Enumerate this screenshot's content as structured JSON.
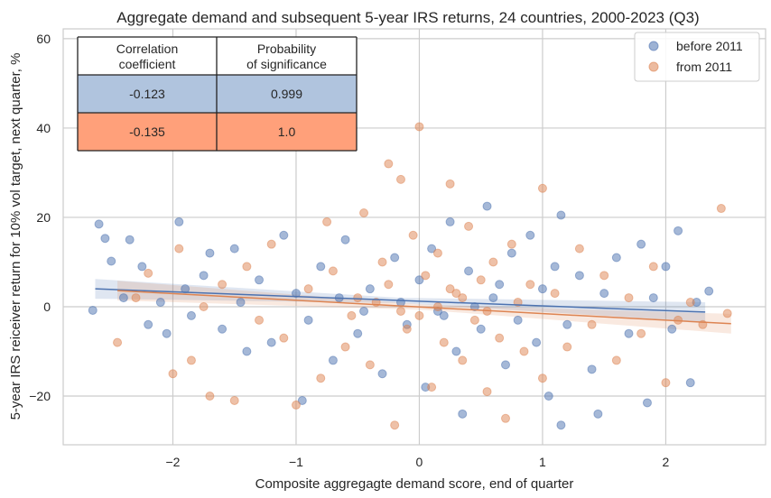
{
  "chart_data": {
    "type": "scatter",
    "title": "Aggregate demand and subsequent 5-year IRS returns, 24 countries, 2000-2023 (Q3)",
    "xlabel": "Composite aggregagte demand score, end of quarter",
    "ylabel": "5-year IRS reiceiver return for 10% vol target, next quarter, %",
    "xlim": [
      -2.89,
      2.81
    ],
    "ylim": [
      -30.9,
      62.2
    ],
    "xticks": [
      -2,
      -1,
      0,
      1,
      2
    ],
    "yticks": [
      -20,
      0,
      20,
      40,
      60
    ],
    "grid": true,
    "legend_position": "top-right",
    "series": [
      {
        "name": "before 2011",
        "color": "#4c72b0",
        "regression": {
          "x": [
            -2.63,
            2.32
          ],
          "y": [
            4.0,
            -1.2
          ]
        },
        "points": [
          [
            -2.65,
            -0.8
          ],
          [
            -2.6,
            18.5
          ],
          [
            -2.55,
            15.3
          ],
          [
            -2.5,
            10.2
          ],
          [
            -2.4,
            2
          ],
          [
            -2.35,
            15
          ],
          [
            -2.25,
            9
          ],
          [
            -2.2,
            -4
          ],
          [
            -2.1,
            1
          ],
          [
            -2.05,
            -6
          ],
          [
            -1.95,
            19
          ],
          [
            -1.9,
            4
          ],
          [
            -1.85,
            -2
          ],
          [
            -1.75,
            7
          ],
          [
            -1.7,
            12
          ],
          [
            -1.6,
            -5
          ],
          [
            -1.5,
            13
          ],
          [
            -1.45,
            1
          ],
          [
            -1.4,
            -10
          ],
          [
            -1.3,
            6
          ],
          [
            -1.2,
            -8
          ],
          [
            -1.1,
            16
          ],
          [
            -1.0,
            3
          ],
          [
            -0.95,
            -21
          ],
          [
            -0.9,
            -3
          ],
          [
            -0.8,
            9
          ],
          [
            -0.7,
            -12
          ],
          [
            -0.6,
            15
          ],
          [
            -0.5,
            -6
          ],
          [
            -0.4,
            4
          ],
          [
            -0.3,
            -15
          ],
          [
            -0.2,
            11
          ],
          [
            -0.1,
            -4
          ],
          [
            0.0,
            6
          ],
          [
            0.05,
            -18
          ],
          [
            0.1,
            13
          ],
          [
            0.2,
            -2
          ],
          [
            0.25,
            19
          ],
          [
            0.3,
            -10
          ],
          [
            0.35,
            -24
          ],
          [
            0.4,
            8
          ],
          [
            0.5,
            -5
          ],
          [
            0.55,
            22.5
          ],
          [
            0.6,
            2
          ],
          [
            0.7,
            -13
          ],
          [
            0.75,
            12
          ],
          [
            0.8,
            -3
          ],
          [
            0.9,
            16
          ],
          [
            0.95,
            -8
          ],
          [
            1.0,
            4
          ],
          [
            1.05,
            -20
          ],
          [
            1.1,
            9
          ],
          [
            1.15,
            20.5
          ],
          [
            1.15,
            -26.5
          ],
          [
            1.2,
            -4
          ],
          [
            1.3,
            7
          ],
          [
            1.4,
            -14
          ],
          [
            1.45,
            -24
          ],
          [
            1.5,
            3
          ],
          [
            1.6,
            11
          ],
          [
            1.7,
            -6
          ],
          [
            1.8,
            14
          ],
          [
            1.85,
            -21.5
          ],
          [
            1.9,
            2
          ],
          [
            2.0,
            9
          ],
          [
            2.05,
            -5
          ],
          [
            2.1,
            17
          ],
          [
            2.2,
            -17
          ],
          [
            2.25,
            1
          ],
          [
            2.35,
            3.5
          ],
          [
            -0.15,
            1
          ],
          [
            0.15,
            -1
          ],
          [
            0.45,
            0
          ],
          [
            -0.45,
            -1
          ],
          [
            0.65,
            5
          ],
          [
            -0.65,
            2
          ]
        ]
      },
      {
        "name": "from 2011",
        "color": "#dd8452",
        "regression": {
          "x": [
            -2.45,
            2.53
          ],
          "y": [
            3.6,
            -3.8
          ]
        },
        "points": [
          [
            -2.45,
            -8
          ],
          [
            -2.3,
            2
          ],
          [
            -2.2,
            7.5
          ],
          [
            -2.0,
            -15
          ],
          [
            -1.95,
            13
          ],
          [
            -1.85,
            -12
          ],
          [
            -1.75,
            0
          ],
          [
            -1.7,
            -20
          ],
          [
            -1.6,
            5
          ],
          [
            -1.5,
            -21
          ],
          [
            -1.4,
            9
          ],
          [
            -1.3,
            -3
          ],
          [
            -1.2,
            14
          ],
          [
            -1.1,
            -7
          ],
          [
            -1.0,
            -22
          ],
          [
            -0.9,
            4
          ],
          [
            -0.8,
            -16
          ],
          [
            -0.75,
            19
          ],
          [
            -0.7,
            8
          ],
          [
            -0.6,
            -9
          ],
          [
            -0.5,
            2
          ],
          [
            -0.45,
            21
          ],
          [
            -0.4,
            -13
          ],
          [
            -0.3,
            10
          ],
          [
            -0.25,
            32
          ],
          [
            -0.2,
            -26.5
          ],
          [
            -0.15,
            28.5
          ],
          [
            -0.1,
            -5
          ],
          [
            -0.05,
            16
          ],
          [
            0.0,
            40.3
          ],
          [
            0.0,
            -2
          ],
          [
            0.05,
            7
          ],
          [
            0.1,
            -18
          ],
          [
            0.15,
            12
          ],
          [
            0.2,
            -8
          ],
          [
            0.25,
            27.5
          ],
          [
            0.3,
            3
          ],
          [
            0.35,
            -12
          ],
          [
            0.4,
            18
          ],
          [
            0.45,
            -3
          ],
          [
            0.5,
            6
          ],
          [
            0.55,
            -19
          ],
          [
            0.6,
            10
          ],
          [
            0.65,
            -7
          ],
          [
            0.7,
            -25
          ],
          [
            0.75,
            14
          ],
          [
            0.8,
            1
          ],
          [
            0.85,
            -10
          ],
          [
            0.9,
            5
          ],
          [
            1.0,
            26.5
          ],
          [
            1.0,
            -16
          ],
          [
            1.1,
            3
          ],
          [
            1.2,
            -9
          ],
          [
            1.3,
            13
          ],
          [
            1.4,
            -4
          ],
          [
            1.5,
            7
          ],
          [
            1.6,
            -12
          ],
          [
            1.7,
            2
          ],
          [
            1.8,
            -6
          ],
          [
            1.9,
            9
          ],
          [
            2.0,
            -17
          ],
          [
            2.1,
            -3
          ],
          [
            2.2,
            1
          ],
          [
            2.3,
            -4
          ],
          [
            2.45,
            22
          ],
          [
            2.5,
            -1.5
          ],
          [
            -0.35,
            1
          ],
          [
            -0.15,
            -1
          ],
          [
            0.15,
            0
          ],
          [
            0.35,
            2
          ],
          [
            -0.55,
            -2
          ],
          [
            0.55,
            -1
          ],
          [
            0.25,
            4
          ],
          [
            -0.25,
            5
          ]
        ]
      }
    ],
    "table": {
      "headers": [
        [
          "Correlation",
          "coefficient"
        ],
        [
          "Probability",
          "of significance"
        ]
      ],
      "rows": [
        {
          "values": [
            "-0.123",
            "0.999"
          ],
          "color": "#b0c4de"
        },
        {
          "values": [
            "-0.135",
            "1.0"
          ],
          "color": "#ffa07a"
        }
      ]
    }
  }
}
